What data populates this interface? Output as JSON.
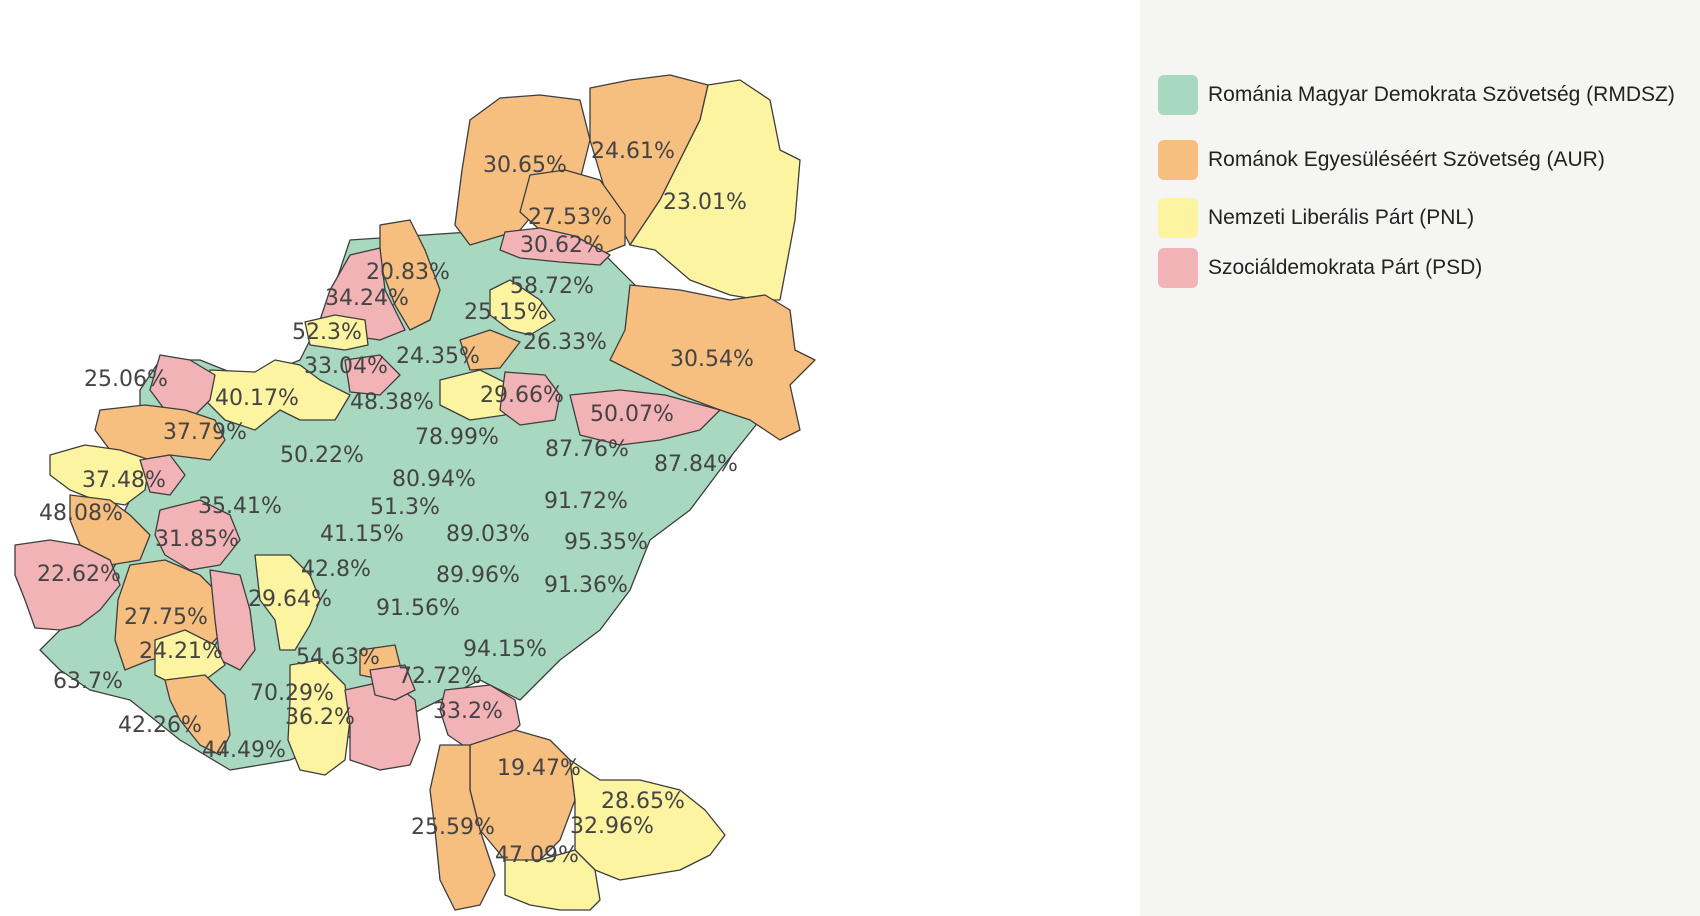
{
  "colors": {
    "rmdsz": "#a8d8bf",
    "aur": "#f6be7f",
    "pnl": "#fcf4a0",
    "psd": "#f2b3b7"
  },
  "legend": {
    "items": [
      {
        "party": "rmdsz",
        "label": "Románia Magyar Demokrata Szövetség (RMDSZ)"
      },
      {
        "party": "aur",
        "label": "Románok Egyesüléséért Szövetség (AUR)"
      },
      {
        "party": "pnl",
        "label": "Nemzeti Liberális Párt (PNL)"
      },
      {
        "party": "psd",
        "label": "Szociáldemokrata Párt (PSD)"
      }
    ]
  },
  "map": {
    "labels": {
      "l1": "30.65%",
      "l2": "24.61%",
      "l3": "23.01%",
      "l4": "27.53%",
      "l5": "30.62%",
      "l6": "20.83%",
      "l7": "58.72%",
      "l8": "34.24%",
      "l9": "25.15%",
      "l10": "52.3%",
      "l11": "26.33%",
      "l12": "30.54%",
      "l13": "24.35%",
      "l14": "33.04%",
      "l15": "25.06%",
      "l16": "40.17%",
      "l17": "29.66%",
      "l18": "48.38%",
      "l19": "50.07%",
      "l20": "37.79%",
      "l21": "78.99%",
      "l22": "50.22%",
      "l23": "87.76%",
      "l24": "87.84%",
      "l25": "37.48%",
      "l26": "80.94%",
      "l27": "35.41%",
      "l28": "51.3%",
      "l29": "91.72%",
      "l30": "48.08%",
      "l31": "41.15%",
      "l32": "89.03%",
      "l33": "31.85%",
      "l34": "95.35%",
      "l35": "22.62%",
      "l36": "42.8%",
      "l37": "89.96%",
      "l38": "91.36%",
      "l39": "29.64%",
      "l40": "91.56%",
      "l41": "27.75%",
      "l42": "24.21%",
      "l43": "94.15%",
      "l44": "54.63%",
      "l45": "63.7%",
      "l46": "72.72%",
      "l47": "70.29%",
      "l48": "36.2%",
      "l49": "33.2%",
      "l50": "42.26%",
      "l51": "44.49%",
      "l52": "19.47%",
      "l53": "28.65%",
      "l54": "32.96%",
      "l55": "25.59%",
      "l56": "47.09%"
    }
  }
}
